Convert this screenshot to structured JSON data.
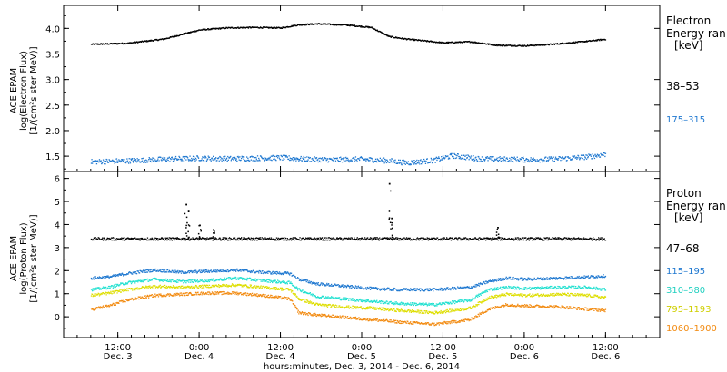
{
  "chart_data": [
    {
      "type": "scatter",
      "panel": "electron",
      "ylabel_lines": [
        "ACE EPAM",
        "log(Electron Flux)",
        "[1/(cm²s ster MeV)]"
      ],
      "legend_title_lines": [
        "Electron",
        "Energy ran",
        "[keV]"
      ],
      "ylim": [
        1.2,
        4.45
      ],
      "yticks": [
        "1.5",
        "2.0",
        "2.5",
        "3.0",
        "3.5",
        "4.0"
      ],
      "series": [
        {
          "name": "38–53",
          "color": "#000000",
          "x": [
            0,
            8,
            16,
            24,
            30,
            36,
            42,
            46,
            50,
            56,
            62,
            66,
            70,
            78,
            84,
            90,
            96,
            102,
            110,
            114
          ],
          "values": [
            3.7,
            3.72,
            3.8,
            3.98,
            4.02,
            4.03,
            4.02,
            4.08,
            4.1,
            4.08,
            4.03,
            3.85,
            3.8,
            3.73,
            3.75,
            3.68,
            3.67,
            3.7,
            3.76,
            3.8
          ]
        },
        {
          "name": "175–315",
          "color": "#1f78d0",
          "x": [
            0,
            8,
            16,
            24,
            30,
            36,
            42,
            48,
            54,
            60,
            66,
            70,
            76,
            80,
            86,
            92,
            98,
            104,
            110,
            114
          ],
          "values": [
            1.4,
            1.42,
            1.45,
            1.47,
            1.46,
            1.47,
            1.48,
            1.45,
            1.44,
            1.45,
            1.42,
            1.38,
            1.43,
            1.52,
            1.46,
            1.45,
            1.44,
            1.46,
            1.5,
            1.55
          ]
        }
      ]
    },
    {
      "type": "scatter",
      "panel": "proton",
      "ylabel_lines": [
        "ACE EPAM",
        "log(Proton Flux)",
        "[1/(cm²s ster MeV)]"
      ],
      "legend_title_lines": [
        "Proton",
        "Energy ran",
        "[keV]"
      ],
      "ylim": [
        -0.9,
        6.3
      ],
      "yticks": [
        "0",
        "1",
        "2",
        "3",
        "4",
        "5",
        "6"
      ],
      "series": [
        {
          "name": "47–68",
          "color": "#000000",
          "x": [
            0,
            114
          ],
          "values": [
            3.4,
            3.4
          ],
          "spikes": [
            [
              21,
              4.9
            ],
            [
              21.5,
              4.6
            ],
            [
              24,
              4.0
            ],
            [
              27,
              3.8
            ],
            [
              66,
              5.8
            ],
            [
              66.5,
              4.3
            ],
            [
              90,
              3.9
            ]
          ]
        },
        {
          "name": "115–195",
          "color": "#1f78d0",
          "x": [
            0,
            4,
            8,
            14,
            20,
            26,
            32,
            38,
            44,
            46,
            50,
            56,
            62,
            68,
            76,
            84,
            88,
            92,
            96,
            104,
            110,
            114
          ],
          "values": [
            1.7,
            1.75,
            1.9,
            2.05,
            1.95,
            2.0,
            2.05,
            1.95,
            1.9,
            1.65,
            1.45,
            1.35,
            1.25,
            1.2,
            1.2,
            1.3,
            1.55,
            1.7,
            1.65,
            1.7,
            1.75,
            1.8
          ]
        },
        {
          "name": "310–580",
          "color": "#20e0d0",
          "x": [
            0,
            4,
            8,
            14,
            20,
            26,
            32,
            38,
            44,
            46,
            50,
            56,
            62,
            68,
            76,
            84,
            88,
            92,
            96,
            104,
            110,
            114
          ],
          "values": [
            1.2,
            1.3,
            1.5,
            1.65,
            1.55,
            1.6,
            1.7,
            1.6,
            1.5,
            1.2,
            0.9,
            0.8,
            0.7,
            0.6,
            0.55,
            0.75,
            1.2,
            1.3,
            1.25,
            1.3,
            1.3,
            1.2
          ]
        },
        {
          "name": "795–1193",
          "color": "#dede00",
          "x": [
            0,
            4,
            8,
            14,
            20,
            26,
            32,
            38,
            44,
            46,
            50,
            56,
            62,
            68,
            76,
            84,
            88,
            92,
            96,
            104,
            110,
            114
          ],
          "values": [
            0.95,
            1.05,
            1.2,
            1.35,
            1.3,
            1.35,
            1.4,
            1.3,
            1.2,
            0.8,
            0.55,
            0.45,
            0.4,
            0.3,
            0.2,
            0.4,
            0.85,
            1.0,
            0.95,
            1.0,
            0.95,
            0.85
          ]
        },
        {
          "name": "1060–1900",
          "color": "#f28a10",
          "x": [
            0,
            4,
            8,
            14,
            20,
            26,
            32,
            38,
            44,
            46,
            50,
            56,
            62,
            68,
            76,
            84,
            88,
            92,
            96,
            104,
            110,
            114
          ],
          "values": [
            0.35,
            0.5,
            0.75,
            0.95,
            1.0,
            1.05,
            1.05,
            0.95,
            0.8,
            0.2,
            0.1,
            0.0,
            -0.1,
            -0.2,
            -0.3,
            -0.1,
            0.35,
            0.55,
            0.5,
            0.45,
            0.35,
            0.3
          ]
        }
      ]
    }
  ],
  "x_axis": {
    "xlim": [
      -6,
      126
    ],
    "tick_hours": [
      6,
      24,
      42,
      60,
      78,
      96,
      114
    ],
    "tick_time_labels": [
      "12:00",
      "0:00",
      "12:00",
      "0:00",
      "12:00",
      "0:00",
      "12:00"
    ],
    "tick_date_labels": [
      "Dec. 3",
      "Dec. 4",
      "Dec. 4",
      "Dec. 5",
      "Dec. 5",
      "Dec. 6",
      "Dec. 6"
    ],
    "xlabel": "hours:minutes, Dec.  3, 2014 - Dec.  6, 2014"
  }
}
